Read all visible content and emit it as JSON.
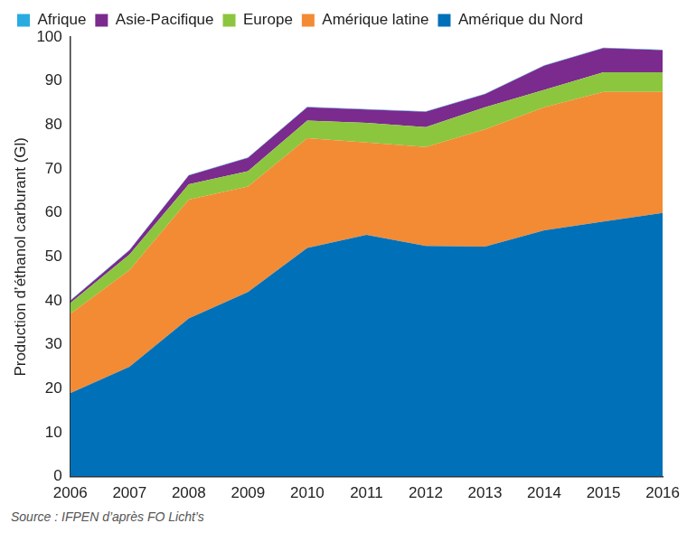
{
  "chart_data": {
    "type": "area",
    "stacked": true,
    "y_label": "Production d’éthanol carburant (Gl)",
    "source": "Source : IFPEN d’après FO Licht’s",
    "categories": [
      2006,
      2007,
      2008,
      2009,
      2010,
      2011,
      2012,
      2013,
      2014,
      2015,
      2016
    ],
    "series": [
      {
        "name": "Amérique du Nord",
        "color": "#0070b8",
        "values": [
          19,
          25,
          36,
          42,
          52,
          55,
          52.5,
          52.3,
          56,
          58,
          60
        ]
      },
      {
        "name": "Amérique latine",
        "color": "#f38b34",
        "values": [
          18,
          22,
          27,
          24,
          25,
          21,
          22.5,
          26.7,
          28,
          29.5,
          27.5
        ]
      },
      {
        "name": "Europe",
        "color": "#8cc63e",
        "values": [
          2.5,
          3.5,
          3.5,
          3.5,
          4,
          4.5,
          4.5,
          5,
          4,
          4.5,
          4.5
        ]
      },
      {
        "name": "Asie-Pacifique",
        "color": "#7b2a8e",
        "values": [
          0.5,
          1,
          2,
          3,
          3,
          3,
          3.5,
          3,
          5.5,
          5.5,
          5
        ]
      },
      {
        "name": "Afrique",
        "color": "#29abe2",
        "values": [
          0.1,
          0.1,
          0.1,
          0.1,
          0.1,
          0.1,
          0.1,
          0.1,
          0.1,
          0.1,
          0.1
        ]
      }
    ],
    "ylim": [
      0,
      100
    ],
    "yticks": [
      0,
      10,
      20,
      30,
      40,
      50,
      60,
      70,
      80,
      90,
      100
    ],
    "grid": false,
    "legend": "top-left"
  }
}
